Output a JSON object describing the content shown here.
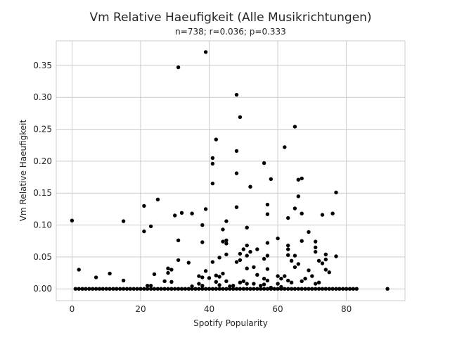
{
  "chart_data": {
    "type": "scatter",
    "title": "Vm Relative Haeufigkeit (Alle Musikrichtungen)",
    "subtitle": "n=738; r=0.036; p=0.333",
    "xlabel": "Spotify Popularity",
    "ylabel": "Vm Relative Haeufigkeit",
    "xlim": [
      -4.6,
      97.1
    ],
    "ylim": [
      -0.0185,
      0.3885
    ],
    "xticks": [
      0,
      20,
      40,
      60,
      80
    ],
    "yticks": [
      0.0,
      0.05,
      0.1,
      0.15,
      0.2,
      0.25,
      0.3,
      0.35
    ],
    "ytick_labels": [
      "0.00",
      "0.05",
      "0.10",
      "0.15",
      "0.20",
      "0.25",
      "0.30",
      "0.35"
    ],
    "grid": true,
    "point_color": "#000000",
    "zero_range": [
      1,
      83
    ],
    "zero_extra": [
      92
    ],
    "points": [
      [
        0,
        0.107
      ],
      [
        2,
        0.03
      ],
      [
        7,
        0.018
      ],
      [
        11,
        0.024
      ],
      [
        15,
        0.013
      ],
      [
        15,
        0.106
      ],
      [
        21,
        0.13
      ],
      [
        21,
        0.09
      ],
      [
        22,
        0.005
      ],
      [
        23,
        0.098
      ],
      [
        23,
        0.005
      ],
      [
        24,
        0.023
      ],
      [
        25,
        0.14
      ],
      [
        27,
        0.012
      ],
      [
        28,
        0.025
      ],
      [
        28,
        0.032
      ],
      [
        29,
        0.03
      ],
      [
        29,
        0.011
      ],
      [
        30,
        0.115
      ],
      [
        31,
        0.347
      ],
      [
        31,
        0.076
      ],
      [
        31,
        0.045
      ],
      [
        32,
        0.119
      ],
      [
        34,
        0.041
      ],
      [
        35,
        0.118
      ],
      [
        35,
        0.004
      ],
      [
        37,
        0.02
      ],
      [
        37,
        0.008
      ],
      [
        38,
        0.1
      ],
      [
        38,
        0.073
      ],
      [
        38,
        0.018
      ],
      [
        38,
        0.005
      ],
      [
        39,
        0.371
      ],
      [
        39,
        0.125
      ],
      [
        39,
        0.028
      ],
      [
        40,
        0.017
      ],
      [
        41,
        0.205
      ],
      [
        41,
        0.196
      ],
      [
        41,
        0.165
      ],
      [
        41,
        0.042
      ],
      [
        42,
        0.234
      ],
      [
        42,
        0.021
      ],
      [
        42,
        0.011
      ],
      [
        43,
        0.049
      ],
      [
        43,
        0.019
      ],
      [
        43,
        0.006
      ],
      [
        44,
        0.093
      ],
      [
        44,
        0.074
      ],
      [
        44,
        0.024
      ],
      [
        45,
        0.106
      ],
      [
        45,
        0.076
      ],
      [
        45,
        0.071
      ],
      [
        45,
        0.054
      ],
      [
        45,
        0.012
      ],
      [
        46,
        0.004
      ],
      [
        47,
        0.005
      ],
      [
        48,
        0.304
      ],
      [
        48,
        0.216
      ],
      [
        48,
        0.181
      ],
      [
        48,
        0.128
      ],
      [
        48,
        0.042
      ],
      [
        49,
        0.269
      ],
      [
        49,
        0.055
      ],
      [
        49,
        0.045
      ],
      [
        49,
        0.01
      ],
      [
        50,
        0.062
      ],
      [
        50,
        0.012
      ],
      [
        51,
        0.096
      ],
      [
        51,
        0.068
      ],
      [
        51,
        0.052
      ],
      [
        51,
        0.032
      ],
      [
        51,
        0.008
      ],
      [
        52,
        0.16
      ],
      [
        52,
        0.058
      ],
      [
        53,
        0.034
      ],
      [
        53,
        0.008
      ],
      [
        54,
        0.062
      ],
      [
        54,
        0.022
      ],
      [
        55,
        0.005
      ],
      [
        56,
        0.197
      ],
      [
        56,
        0.047
      ],
      [
        56,
        0.016
      ],
      [
        56,
        0.007
      ],
      [
        57,
        0.132
      ],
      [
        57,
        0.117
      ],
      [
        57,
        0.072
      ],
      [
        57,
        0.052
      ],
      [
        57,
        0.031
      ],
      [
        57,
        0.013
      ],
      [
        58,
        0.172
      ],
      [
        58,
        0.002
      ],
      [
        60,
        0.079
      ],
      [
        60,
        0.02
      ],
      [
        60,
        0.008
      ],
      [
        61,
        0.016
      ],
      [
        61,
        0.003
      ],
      [
        62,
        0.222
      ],
      [
        62,
        0.02
      ],
      [
        63,
        0.111
      ],
      [
        63,
        0.068
      ],
      [
        63,
        0.062
      ],
      [
        63,
        0.053
      ],
      [
        63,
        0.013
      ],
      [
        64,
        0.044
      ],
      [
        64,
        0.01
      ],
      [
        65,
        0.254
      ],
      [
        65,
        0.126
      ],
      [
        65,
        0.052
      ],
      [
        65,
        0.034
      ],
      [
        66,
        0.171
      ],
      [
        66,
        0.145
      ],
      [
        66,
        0.039
      ],
      [
        67,
        0.173
      ],
      [
        67,
        0.118
      ],
      [
        67,
        0.075
      ],
      [
        67,
        0.012
      ],
      [
        68,
        0.016
      ],
      [
        69,
        0.089
      ],
      [
        69,
        0.029
      ],
      [
        70,
        0.02
      ],
      [
        71,
        0.074
      ],
      [
        71,
        0.065
      ],
      [
        71,
        0.058
      ],
      [
        71,
        0.008
      ],
      [
        72,
        0.044
      ],
      [
        72,
        0.01
      ],
      [
        73,
        0.116
      ],
      [
        73,
        0.04
      ],
      [
        74,
        0.054
      ],
      [
        74,
        0.046
      ],
      [
        74,
        0.03
      ],
      [
        75,
        0.026
      ],
      [
        76,
        0.118
      ],
      [
        77,
        0.151
      ],
      [
        77,
        0.051
      ]
    ]
  }
}
